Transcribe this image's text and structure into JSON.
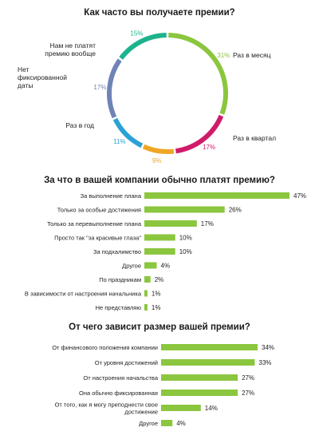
{
  "chart_data": [
    {
      "type": "pie",
      "title": "Как часто вы получаете премии?",
      "categories": [
        "Раз в месяц",
        "Раз в квартал",
        "",
        "Раз в год",
        "Нет фиксированной даты",
        "Нам не платят премию вообще"
      ],
      "values": [
        31,
        17,
        9,
        11,
        17,
        15
      ],
      "value_labels": [
        "31%",
        "17%",
        "9%",
        "11%",
        "17%",
        "15%"
      ],
      "colors": [
        "#8bc63f",
        "#cf1b6a",
        "#f0a625",
        "#2aa2d5",
        "#6f83b7",
        "#1db38d"
      ],
      "label_lines": [
        [
          "Раз в месяц"
        ],
        [
          "Раз в квартал"
        ],
        [],
        [
          "Раз в год"
        ],
        [
          "Нет",
          "фиксированной",
          "даты"
        ],
        [
          "Нам не платят",
          "премию вообще"
        ]
      ]
    },
    {
      "type": "bar",
      "orientation": "horizontal",
      "title": "За что в вашей компании обычно платят премию?",
      "categories": [
        "За выполнение плана",
        "Только за особые достижения",
        "Только за перевыполнение плана",
        "Просто так \"за красивые глаза\"",
        "За подхалимство",
        "Другое",
        "По праздникам",
        "В зависимости от настроения начальника",
        "Не представляю"
      ],
      "values": [
        47,
        26,
        17,
        10,
        10,
        4,
        2,
        1,
        1
      ],
      "value_labels": [
        "47%",
        "26%",
        "17%",
        "10%",
        "10%",
        "4%",
        "2%",
        "1%",
        "1%"
      ],
      "xlim": [
        0,
        47
      ],
      "color": "#8bc63f"
    },
    {
      "type": "bar",
      "orientation": "horizontal",
      "title": "От чего зависит размер вашей премии?",
      "categories": [
        "От финансового положения компании",
        "От уровня достижений",
        "От настроения начальства",
        "Она обычно фиксированная",
        "От того, как я могу преподнести свое достижение",
        "Другое"
      ],
      "category_lines": [
        [
          "От финансового положения компании"
        ],
        [
          "От уровня достижений"
        ],
        [
          "От настроения начальства"
        ],
        [
          "Она обычно фиксированная"
        ],
        [
          "От того, как я могу преподнести свое",
          "достижение"
        ],
        [
          "Другое"
        ]
      ],
      "values": [
        34,
        33,
        27,
        27,
        14,
        4
      ],
      "value_labels": [
        "34%",
        "33%",
        "27%",
        "27%",
        "14%",
        "4%"
      ],
      "xlim": [
        0,
        34
      ],
      "color": "#8bc63f"
    }
  ]
}
